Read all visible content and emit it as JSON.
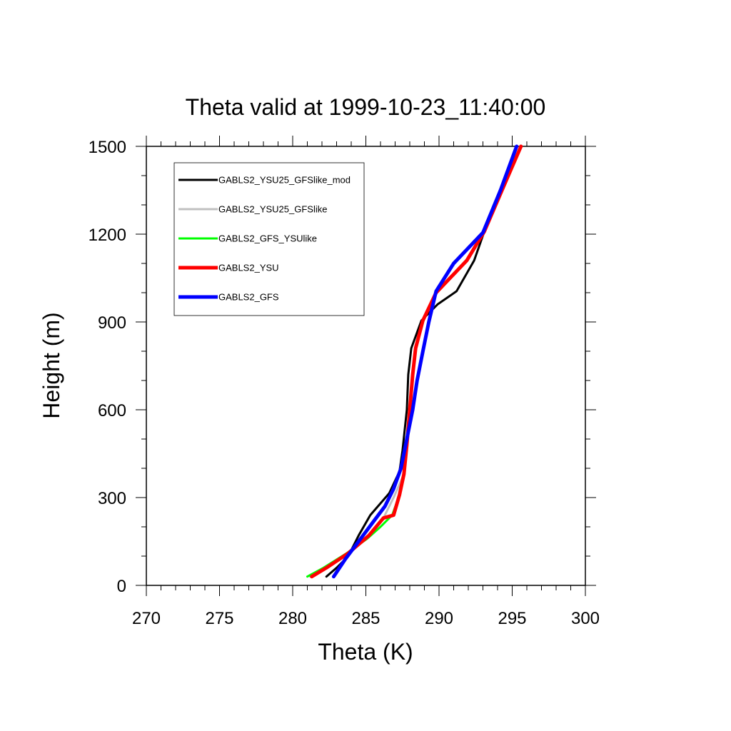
{
  "chart_data": {
    "type": "line",
    "title": "Theta valid at 1999-10-23_11:40:00",
    "xlabel": "Theta (K)",
    "ylabel": "Height (m)",
    "xlim": [
      270,
      300
    ],
    "ylim": [
      0,
      1500
    ],
    "xticks": [
      270,
      275,
      280,
      285,
      290,
      295,
      300
    ],
    "yticks": [
      0,
      300,
      600,
      900,
      1200,
      1500
    ],
    "grid": false,
    "legend_position": "top-left",
    "series": [
      {
        "name": "GABLS2_YSU25_GFSlike_mod",
        "color": "#000000",
        "line_width": 3,
        "points": [
          [
            282.3,
            30
          ],
          [
            283.0,
            60
          ],
          [
            283.8,
            100
          ],
          [
            284.5,
            170
          ],
          [
            285.3,
            240
          ],
          [
            286.6,
            315
          ],
          [
            287.3,
            390
          ],
          [
            287.5,
            460
          ],
          [
            287.8,
            600
          ],
          [
            287.9,
            720
          ],
          [
            288.1,
            810
          ],
          [
            288.8,
            905
          ],
          [
            289.9,
            960
          ],
          [
            291.2,
            1005
          ],
          [
            292.4,
            1110
          ],
          [
            293.1,
            1210
          ],
          [
            294.3,
            1350
          ],
          [
            295.6,
            1500
          ]
        ]
      },
      {
        "name": "GABLS2_YSU25_GFSlike",
        "color": "#c0c0c0",
        "line_width": 3,
        "points": [
          [
            281.2,
            30
          ],
          [
            282.3,
            60
          ],
          [
            283.8,
            110
          ],
          [
            285.2,
            170
          ],
          [
            286.2,
            230
          ],
          [
            286.9,
            300
          ],
          [
            287.6,
            380
          ],
          [
            287.8,
            480
          ],
          [
            288.0,
            600
          ],
          [
            288.2,
            720
          ],
          [
            288.4,
            810
          ],
          [
            288.9,
            905
          ],
          [
            289.8,
            1000
          ],
          [
            291.9,
            1110
          ],
          [
            293.1,
            1210
          ],
          [
            294.3,
            1350
          ],
          [
            295.6,
            1500
          ]
        ]
      },
      {
        "name": "GABLS2_GFS_YSUlike",
        "color": "#00ff00",
        "line_width": 3,
        "points": [
          [
            281.0,
            30
          ],
          [
            282.1,
            60
          ],
          [
            283.7,
            110
          ],
          [
            285.1,
            160
          ],
          [
            286.0,
            200
          ],
          [
            286.8,
            240
          ],
          [
            287.3,
            310
          ],
          [
            287.6,
            380
          ],
          [
            287.8,
            480
          ],
          [
            288.0,
            600
          ],
          [
            288.2,
            720
          ],
          [
            288.4,
            810
          ],
          [
            288.9,
            905
          ],
          [
            289.8,
            1000
          ],
          [
            291.9,
            1110
          ],
          [
            293.1,
            1210
          ],
          [
            294.3,
            1350
          ],
          [
            295.6,
            1500
          ]
        ]
      },
      {
        "name": "GABLS2_YSU",
        "color": "#ff0000",
        "line_width": 5,
        "points": [
          [
            281.3,
            30
          ],
          [
            282.3,
            60
          ],
          [
            283.8,
            110
          ],
          [
            285.2,
            170
          ],
          [
            286.2,
            230
          ],
          [
            286.9,
            240
          ],
          [
            287.3,
            310
          ],
          [
            287.6,
            380
          ],
          [
            287.8,
            480
          ],
          [
            288.0,
            600
          ],
          [
            288.2,
            720
          ],
          [
            288.4,
            810
          ],
          [
            288.9,
            905
          ],
          [
            289.8,
            1000
          ],
          [
            291.9,
            1110
          ],
          [
            293.1,
            1210
          ],
          [
            294.3,
            1350
          ],
          [
            295.6,
            1500
          ]
        ]
      },
      {
        "name": "GABLS2_GFS",
        "color": "#0000ff",
        "line_width": 5,
        "points": [
          [
            282.8,
            30
          ],
          [
            283.6,
            90
          ],
          [
            284.5,
            150
          ],
          [
            285.4,
            210
          ],
          [
            286.3,
            270
          ],
          [
            286.9,
            330
          ],
          [
            287.4,
            400
          ],
          [
            287.8,
            500
          ],
          [
            288.2,
            600
          ],
          [
            288.5,
            700
          ],
          [
            288.9,
            800
          ],
          [
            289.3,
            900
          ],
          [
            289.8,
            1005
          ],
          [
            291.0,
            1100
          ],
          [
            293.0,
            1205
          ],
          [
            294.2,
            1350
          ],
          [
            295.3,
            1500
          ]
        ]
      }
    ]
  }
}
